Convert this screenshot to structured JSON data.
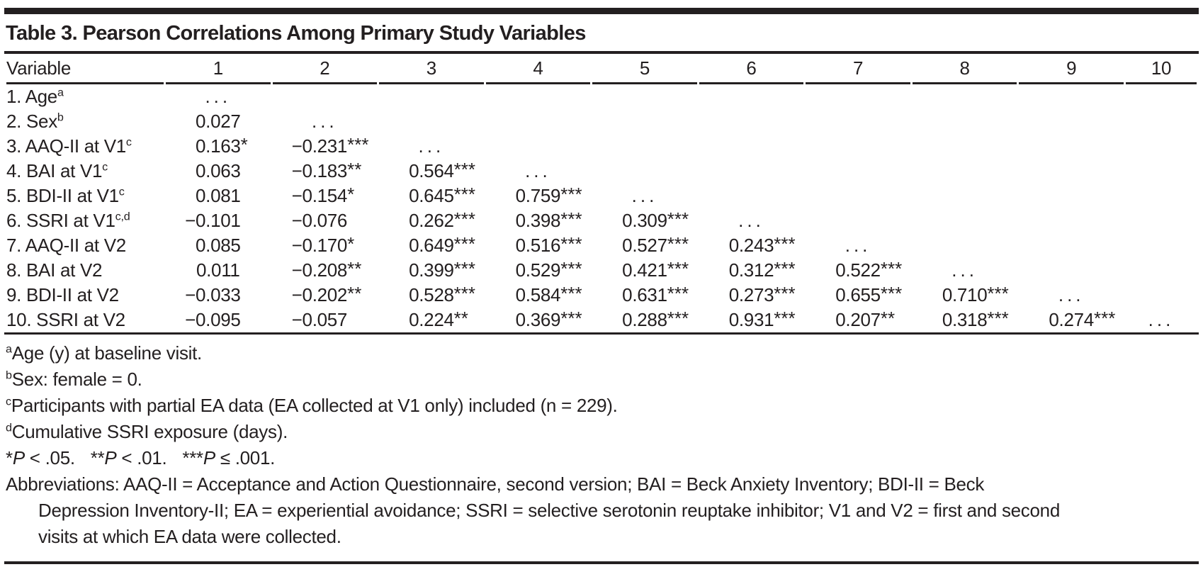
{
  "title": "Table 3. Pearson Correlations Among Primary Study Variables",
  "colors": {
    "text": "#231f20",
    "rule": "#231f20",
    "background": "#ffffff"
  },
  "table": {
    "variable_header": "Variable",
    "column_headers": [
      "1",
      "2",
      "3",
      "4",
      "5",
      "6",
      "7",
      "8",
      "9",
      "10"
    ],
    "ellipsis": "…",
    "rows": [
      {
        "label": "1. Age",
        "sup": "a",
        "values": [
          "…"
        ]
      },
      {
        "label": "2. Sex",
        "sup": "b",
        "values": [
          "0.027",
          "…"
        ]
      },
      {
        "label": "3. AAQ-II at V1",
        "sup": "c",
        "values": [
          "0.163*",
          "−0.231***",
          "…"
        ]
      },
      {
        "label": "4. BAI at V1",
        "sup": "c",
        "values": [
          "0.063",
          "−0.183**",
          "0.564***",
          "…"
        ]
      },
      {
        "label": "5. BDI-II at V1",
        "sup": "c",
        "values": [
          "0.081",
          "−0.154*",
          "0.645***",
          "0.759***",
          "…"
        ]
      },
      {
        "label": "6. SSRI at V1",
        "sup": "c,d",
        "values": [
          "−0.101",
          "−0.076",
          "0.262***",
          "0.398***",
          "0.309***",
          "…"
        ]
      },
      {
        "label": "7. AAQ-II at V2",
        "sup": "",
        "values": [
          "0.085",
          "−0.170*",
          "0.649***",
          "0.516***",
          "0.527***",
          "0.243***",
          "…"
        ]
      },
      {
        "label": "8. BAI at V2",
        "sup": "",
        "values": [
          "0.011",
          "−0.208**",
          "0.399***",
          "0.529***",
          "0.421***",
          "0.312***",
          "0.522***",
          "…"
        ]
      },
      {
        "label": "9. BDI-II at V2",
        "sup": "",
        "values": [
          "−0.033",
          "−0.202**",
          "0.528***",
          "0.584***",
          "0.631***",
          "0.273***",
          "0.655***",
          "0.710***",
          "…"
        ]
      },
      {
        "label": "10. SSRI at V2",
        "sup": "",
        "values": [
          "−0.095",
          "−0.057",
          "0.224**",
          "0.369***",
          "0.288***",
          "0.931***",
          "0.207**",
          "0.318***",
          "0.274***",
          "…"
        ]
      }
    ]
  },
  "footnotes": [
    {
      "sup": "a",
      "text": "Age (y) at baseline visit."
    },
    {
      "sup": "b",
      "text": "Sex: female = 0."
    },
    {
      "sup": "c",
      "text": "Participants with partial EA data (EA collected at V1 only) included (n = 229)."
    },
    {
      "sup": "d",
      "text": "Cumulative SSRI exposure (days)."
    }
  ],
  "significance": [
    {
      "stars": "*",
      "p_label": "P",
      "relation": " < .05."
    },
    {
      "stars": "**",
      "p_label": "P",
      "relation": " < .01."
    },
    {
      "stars": "***",
      "p_label": "P",
      "relation": " ≤ .001."
    }
  ],
  "abbreviations": {
    "lines": [
      "Abbreviations: AAQ-II = Acceptance and Action Questionnaire, second version; BAI = Beck Anxiety Inventory; BDI-II = Beck",
      "Depression Inventory-II; EA = experiential avoidance; SSRI = selective serotonin reuptake inhibitor; V1 and V2 = first and second",
      "visits at which EA data were collected."
    ]
  }
}
